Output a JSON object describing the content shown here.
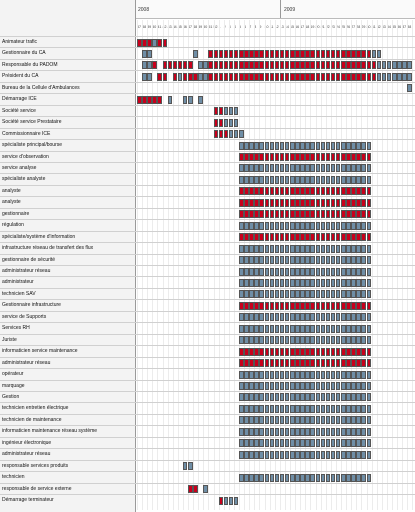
{
  "header": {
    "years": [
      "2008",
      "2009"
    ],
    "weeks_2008": [
      "37",
      "38",
      "39",
      "40",
      "41",
      "42",
      "43",
      "44",
      "45",
      "46",
      "47",
      "48",
      "49",
      "50",
      "51",
      "52"
    ],
    "weeks_2009": [
      "1",
      "2",
      "3",
      "4",
      "5",
      "6",
      "7",
      "8",
      "9",
      "10",
      "11",
      "12",
      "13",
      "14",
      "15",
      "16",
      "17",
      "18",
      "19",
      "20",
      "21",
      "22",
      "23",
      "24",
      "25",
      "26",
      "27",
      "28",
      "29",
      "30",
      "31",
      "32",
      "33",
      "34",
      "35",
      "36",
      "37",
      "38",
      "39",
      "40",
      "41",
      "42",
      "43",
      "44",
      "45",
      "46",
      "47",
      "48",
      "49",
      "50",
      "51",
      "52"
    ]
  },
  "legend_colors": {
    "confirmed": "#c8001c",
    "planned": "#6f8ea6"
  },
  "rows": [
    {
      "label": "Animateur trafic",
      "cells": [
        [
          0,
          "r"
        ],
        [
          1,
          "r"
        ],
        [
          2,
          "r"
        ],
        [
          3,
          "b"
        ],
        [
          4,
          "r"
        ],
        [
          5,
          "r"
        ]
      ]
    },
    {
      "label": "Gestionnaire du CA",
      "cells": [
        [
          1,
          "b"
        ],
        [
          2,
          "b"
        ],
        [
          11,
          "b"
        ],
        [
          14,
          "r"
        ],
        [
          15,
          "r"
        ],
        [
          16,
          "r"
        ],
        [
          17,
          "r"
        ],
        [
          18,
          "r"
        ],
        [
          19,
          "r"
        ],
        [
          20,
          "r"
        ],
        [
          21,
          "r"
        ],
        [
          22,
          "r"
        ],
        [
          23,
          "r"
        ],
        [
          24,
          "r"
        ],
        [
          25,
          "r"
        ],
        [
          26,
          "r"
        ],
        [
          27,
          "r"
        ],
        [
          28,
          "r"
        ],
        [
          29,
          "r"
        ],
        [
          30,
          "r"
        ],
        [
          31,
          "r"
        ],
        [
          32,
          "r"
        ],
        [
          33,
          "r"
        ],
        [
          34,
          "r"
        ],
        [
          35,
          "r"
        ],
        [
          36,
          "r"
        ],
        [
          37,
          "r"
        ],
        [
          38,
          "r"
        ],
        [
          39,
          "r"
        ],
        [
          40,
          "r"
        ],
        [
          41,
          "r"
        ],
        [
          42,
          "r"
        ],
        [
          43,
          "r"
        ],
        [
          44,
          "r"
        ],
        [
          45,
          "r"
        ],
        [
          46,
          "b"
        ],
        [
          47,
          "b"
        ]
      ]
    },
    {
      "label": "Responsable du PADOM",
      "cells": [
        [
          1,
          "b"
        ],
        [
          2,
          "b"
        ],
        [
          3,
          "r"
        ],
        [
          5,
          "r"
        ],
        [
          6,
          "r"
        ],
        [
          7,
          "r"
        ],
        [
          8,
          "r"
        ],
        [
          9,
          "r"
        ],
        [
          10,
          "r"
        ],
        [
          12,
          "b"
        ],
        [
          13,
          "b"
        ],
        [
          14,
          "r"
        ],
        [
          15,
          "r"
        ],
        [
          16,
          "r"
        ],
        [
          17,
          "r"
        ],
        [
          18,
          "r"
        ],
        [
          19,
          "r"
        ],
        [
          20,
          "r"
        ],
        [
          21,
          "r"
        ],
        [
          22,
          "r"
        ],
        [
          23,
          "r"
        ],
        [
          24,
          "r"
        ],
        [
          25,
          "r"
        ],
        [
          26,
          "r"
        ],
        [
          27,
          "r"
        ],
        [
          28,
          "r"
        ],
        [
          29,
          "r"
        ],
        [
          30,
          "r"
        ],
        [
          31,
          "r"
        ],
        [
          32,
          "r"
        ],
        [
          33,
          "r"
        ],
        [
          34,
          "r"
        ],
        [
          35,
          "r"
        ],
        [
          36,
          "r"
        ],
        [
          37,
          "r"
        ],
        [
          38,
          "r"
        ],
        [
          39,
          "r"
        ],
        [
          40,
          "r"
        ],
        [
          41,
          "r"
        ],
        [
          42,
          "r"
        ],
        [
          43,
          "r"
        ],
        [
          44,
          "r"
        ],
        [
          45,
          "r"
        ],
        [
          46,
          "r"
        ],
        [
          47,
          "b"
        ],
        [
          48,
          "b"
        ],
        [
          49,
          "b"
        ],
        [
          50,
          "b"
        ],
        [
          51,
          "b"
        ],
        [
          52,
          "b"
        ],
        [
          53,
          "b"
        ]
      ]
    },
    {
      "label": "Président du CA",
      "cells": [
        [
          1,
          "b"
        ],
        [
          2,
          "b"
        ],
        [
          4,
          "r"
        ],
        [
          5,
          "r"
        ],
        [
          7,
          "r"
        ],
        [
          8,
          "b"
        ],
        [
          9,
          "r"
        ],
        [
          10,
          "r"
        ],
        [
          11,
          "r"
        ],
        [
          12,
          "b"
        ],
        [
          13,
          "b"
        ],
        [
          14,
          "r"
        ],
        [
          15,
          "r"
        ],
        [
          16,
          "r"
        ],
        [
          17,
          "r"
        ],
        [
          18,
          "r"
        ],
        [
          19,
          "r"
        ],
        [
          20,
          "r"
        ],
        [
          21,
          "r"
        ],
        [
          22,
          "r"
        ],
        [
          23,
          "r"
        ],
        [
          24,
          "r"
        ],
        [
          25,
          "r"
        ],
        [
          26,
          "r"
        ],
        [
          27,
          "r"
        ],
        [
          28,
          "r"
        ],
        [
          29,
          "r"
        ],
        [
          30,
          "r"
        ],
        [
          31,
          "r"
        ],
        [
          32,
          "r"
        ],
        [
          33,
          "r"
        ],
        [
          34,
          "r"
        ],
        [
          35,
          "r"
        ],
        [
          36,
          "r"
        ],
        [
          37,
          "r"
        ],
        [
          38,
          "r"
        ],
        [
          39,
          "r"
        ],
        [
          40,
          "r"
        ],
        [
          41,
          "r"
        ],
        [
          42,
          "r"
        ],
        [
          43,
          "r"
        ],
        [
          44,
          "r"
        ],
        [
          45,
          "r"
        ],
        [
          46,
          "r"
        ],
        [
          47,
          "b"
        ],
        [
          48,
          "b"
        ],
        [
          49,
          "b"
        ],
        [
          50,
          "b"
        ],
        [
          51,
          "b"
        ],
        [
          52,
          "b"
        ],
        [
          53,
          "b"
        ]
      ]
    },
    {
      "label": "Bureau de la Cellule d'Ambulances",
      "cells": [
        [
          53,
          "b"
        ]
      ]
    },
    {
      "label": "Démarrage ICE",
      "cells": [
        [
          0,
          "r"
        ],
        [
          1,
          "r"
        ],
        [
          2,
          "r"
        ],
        [
          3,
          "r"
        ],
        [
          4,
          "r"
        ],
        [
          6,
          "b"
        ],
        [
          9,
          "b"
        ],
        [
          10,
          "b"
        ],
        [
          12,
          "b"
        ]
      ]
    },
    {
      "label": "Société service",
      "cells": [
        [
          15,
          "r"
        ],
        [
          16,
          "r"
        ],
        [
          17,
          "b"
        ],
        [
          18,
          "b"
        ],
        [
          19,
          "b"
        ]
      ]
    },
    {
      "label": "Société service Prestataire",
      "cells": [
        [
          15,
          "r"
        ],
        [
          16,
          "r"
        ],
        [
          17,
          "b"
        ],
        [
          18,
          "b"
        ],
        [
          19,
          "b"
        ]
      ]
    },
    {
      "label": "Commissionnaire ICE",
      "cells": [
        [
          15,
          "r"
        ],
        [
          16,
          "r"
        ],
        [
          17,
          "r"
        ],
        [
          18,
          "b"
        ],
        [
          19,
          "b"
        ],
        [
          20,
          "b"
        ]
      ]
    },
    {
      "label": "spécialiste principal/bourse",
      "fill": "b"
    },
    {
      "label": "service d'observation",
      "fill": "r"
    },
    {
      "label": "service analyse",
      "fill": "b"
    },
    {
      "label": "spécialiste analyste",
      "fill": "b"
    },
    {
      "label": "analyste",
      "fill": "r"
    },
    {
      "label": "analyste",
      "fill": "r"
    },
    {
      "label": "gestionnaire",
      "fill": "r"
    },
    {
      "label": "régulation",
      "fill": "b"
    },
    {
      "label": "spécialiste/système d'information",
      "fill": "r"
    },
    {
      "label": "infrastructure réseau de transfert des flux",
      "fill": "b"
    },
    {
      "label": "gestionnaire de sécurité",
      "fill": "b"
    },
    {
      "label": "administrateur réseau",
      "fill": "b"
    },
    {
      "label": "administrateur",
      "fill": "b"
    },
    {
      "label": "technicien SAV",
      "fill": "b"
    },
    {
      "label": "Gestionnaire infrastructure",
      "fill": "r"
    },
    {
      "label": "service de Supports",
      "fill": "b"
    },
    {
      "label": "Services RH",
      "fill": "b"
    },
    {
      "label": "Juriste",
      "fill": "b"
    },
    {
      "label": "informaticien service maintenance",
      "fill": "r"
    },
    {
      "label": "administrateur réseau",
      "fill": "r"
    },
    {
      "label": "opérateur",
      "fill": "b"
    },
    {
      "label": "marquage",
      "fill": "b"
    },
    {
      "label": "Gestion",
      "fill": "b"
    },
    {
      "label": "technicien entretien électrique",
      "fill": "b"
    },
    {
      "label": "technicien de maintenance",
      "fill": "b"
    },
    {
      "label": "informaticien maintenance réseau système",
      "fill": "b"
    },
    {
      "label": "ingénieur électronique",
      "fill": "b"
    },
    {
      "label": "administrateur réseau",
      "fill": "b"
    },
    {
      "label": "responsable services produits",
      "cells": [
        [
          9,
          "b"
        ],
        [
          10,
          "b"
        ]
      ]
    },
    {
      "label": "technicien",
      "fill": "b"
    },
    {
      "label": "responsable de service externe",
      "cells": [
        [
          10,
          "r"
        ],
        [
          11,
          "r"
        ],
        [
          13,
          "b"
        ]
      ]
    },
    {
      "label": "Démarrage terminateur",
      "cells": [
        [
          16,
          "r"
        ],
        [
          17,
          "b"
        ],
        [
          18,
          "b"
        ],
        [
          19,
          "b"
        ]
      ]
    }
  ]
}
